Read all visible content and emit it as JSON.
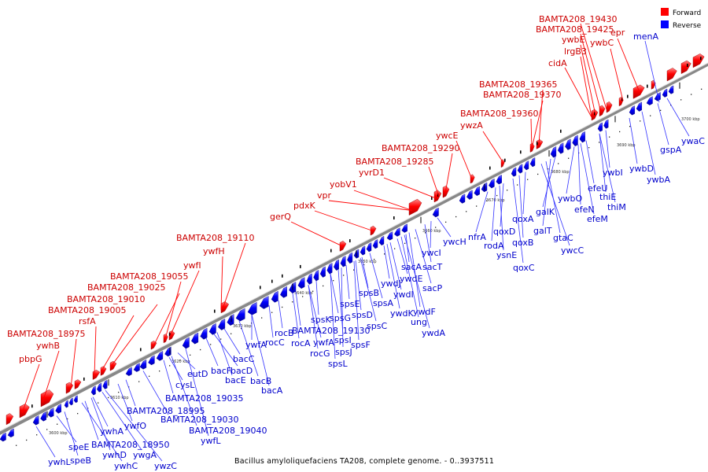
{
  "caption": "Bacillus amyloliquefaciens TA208, complete genome. - 0..3937511",
  "legend": [
    {
      "label": "Forward",
      "color": "#ff0000"
    },
    {
      "label": "Reverse",
      "color": "#0000ff"
    }
  ],
  "colors": {
    "forward": "#ff0000",
    "reverse": "#0000ff",
    "backbone": "#777777",
    "label_forward": "#cc0000",
    "label_reverse": "#0000cc"
  },
  "ticks": [
    "3600 kbp",
    "3610 kbp",
    "3620 kbp",
    "3630 kbp",
    "3640 kbp",
    "3650 kbp",
    "3660 kbp",
    "3670 kbp",
    "3680 kbp",
    "3690 kbp",
    "3700 kbp"
  ],
  "forward_genes": [
    "BAMTA208_19430",
    "BAMTA208_19425",
    "ywbE",
    "lrgB3",
    "ywbC",
    "epr",
    "cidA",
    "BAMTA208_19365",
    "BAMTA208_19370",
    "BAMTA208_19360",
    "ywzA",
    "ywcE",
    "BAMTA208_19290",
    "BAMTA208_19285",
    "yvrD1",
    "yobV1",
    "vpr",
    "pdxK",
    "gerQ",
    "BAMTA208_19110",
    "ywfH",
    "ywfI",
    "BAMTA208_19055",
    "BAMTA208_19025",
    "BAMTA208_19010",
    "BAMTA208_19005",
    "rsfA",
    "BAMTA208_18975",
    "ywhB",
    "pbpG"
  ],
  "reverse_genes": [
    "menA",
    "ywaC",
    "gspA",
    "ywbA",
    "ywbD",
    "ywbI",
    "thiE",
    "thiM",
    "efeU",
    "efeN",
    "efeM",
    "ywbO",
    "galK",
    "galT",
    "gtaC",
    "ywcC",
    "qoxA",
    "qoxB",
    "qoxC",
    "qoxD",
    "rodA",
    "ysnE",
    "nfrA",
    "ywcH",
    "ywcI",
    "sacT",
    "sacA",
    "sacP",
    "ywdE",
    "ywdI",
    "ywdF",
    "ywdJ",
    "ywdK",
    "ung",
    "ywdA",
    "spsB",
    "spsA",
    "spsE",
    "spsD",
    "spsC",
    "spsF",
    "spsG",
    "spsK",
    "spsI",
    "spsJ",
    "spsL",
    "BAMTA208_19130",
    "ywfA",
    "rocC",
    "rocB",
    "rocA",
    "ywfA",
    "rocG",
    "bacC",
    "bacF",
    "bacD",
    "bacE",
    "bacB",
    "bacA",
    "eutD",
    "cysL",
    "BAMTA208_19035",
    "BAMTA208_18995",
    "BAMTA208_19030",
    "BAMTA208_19040",
    "ywfL",
    "ywfO",
    "ywhA",
    "BAMTA208_18950",
    "ywhD",
    "ywgA",
    "ywhC",
    "ywzC",
    "speE",
    "speB",
    "ywhL"
  ]
}
